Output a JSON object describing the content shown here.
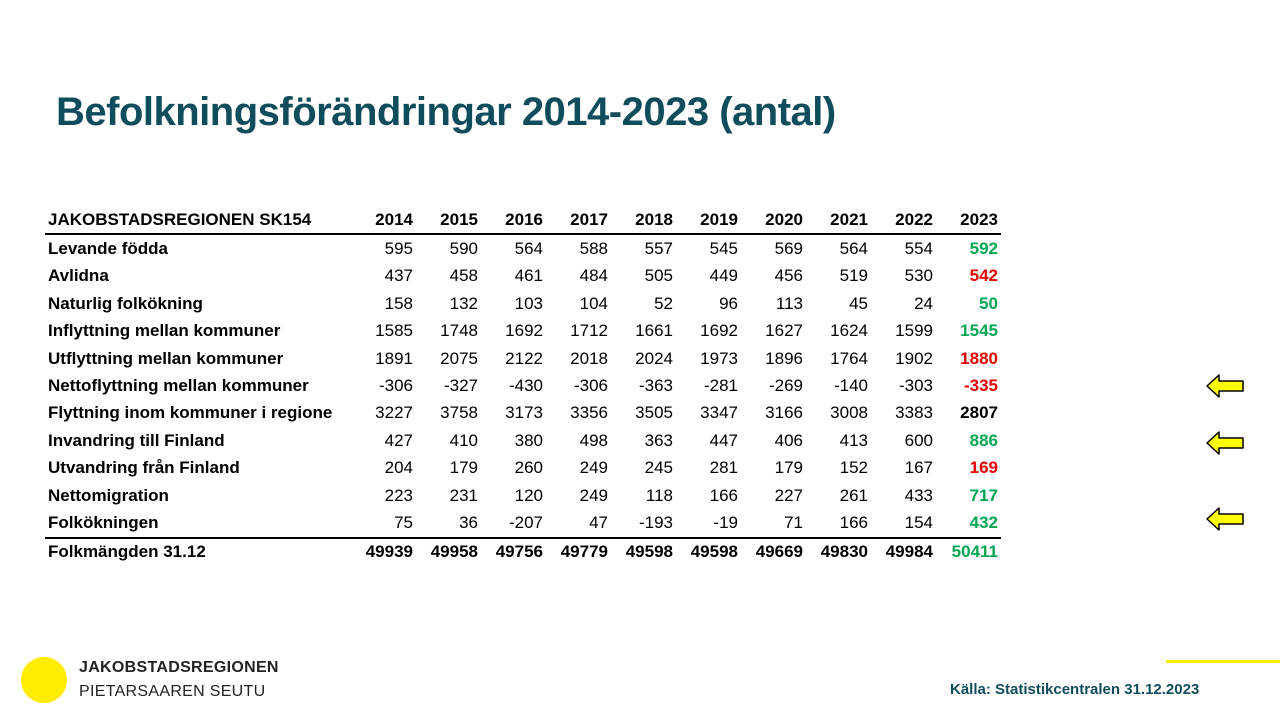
{
  "title": "Befolkningsförändringar 2014-2023 (antal)",
  "table": {
    "header": "JAKOBSTADSREGIONEN SK154",
    "years": [
      "2014",
      "2015",
      "2016",
      "2017",
      "2018",
      "2019",
      "2020",
      "2021",
      "2022",
      "2023"
    ],
    "rows": [
      {
        "label": "Levande födda",
        "values": [
          "595",
          "590",
          "564",
          "588",
          "557",
          "545",
          "569",
          "564",
          "554",
          "592"
        ],
        "last_color": "#00a651"
      },
      {
        "label": "Avlidna",
        "values": [
          "437",
          "458",
          "461",
          "484",
          "505",
          "449",
          "456",
          "519",
          "530",
          "542"
        ],
        "last_color": "#e60000"
      },
      {
        "label": "Naturlig folkökning",
        "values": [
          "158",
          "132",
          "103",
          "104",
          "52",
          "96",
          "113",
          "45",
          "24",
          "50"
        ],
        "last_color": "#00a651"
      },
      {
        "label": "Inflyttning mellan kommuner",
        "values": [
          "1585",
          "1748",
          "1692",
          "1712",
          "1661",
          "1692",
          "1627",
          "1624",
          "1599",
          "1545"
        ],
        "last_color": "#00a651"
      },
      {
        "label": "Utflyttning mellan kommuner",
        "values": [
          "1891",
          "2075",
          "2122",
          "2018",
          "2024",
          "1973",
          "1896",
          "1764",
          "1902",
          "1880"
        ],
        "last_color": "#e60000"
      },
      {
        "label": "Nettoflyttning mellan kommuner",
        "values": [
          "-306",
          "-327",
          "-430",
          "-306",
          "-363",
          "-281",
          "-269",
          "-140",
          "-303",
          "-335"
        ],
        "last_color": "#e60000"
      },
      {
        "label": "Flyttning inom kommuner i regione",
        "values": [
          "3227",
          "3758",
          "3173",
          "3356",
          "3505",
          "3347",
          "3166",
          "3008",
          "3383",
          "2807"
        ],
        "last_color": "#000000"
      },
      {
        "label": "Invandring till Finland",
        "values": [
          "427",
          "410",
          "380",
          "498",
          "363",
          "447",
          "406",
          "413",
          "600",
          "886"
        ],
        "last_color": "#00a651"
      },
      {
        "label": "Utvandring från Finland",
        "values": [
          "204",
          "179",
          "260",
          "249",
          "245",
          "281",
          "179",
          "152",
          "167",
          "169"
        ],
        "last_color": "#e60000"
      },
      {
        "label": "Nettomigration",
        "values": [
          "223",
          "231",
          "120",
          "249",
          "118",
          "166",
          "227",
          "261",
          "433",
          "717"
        ],
        "last_color": "#00a651"
      },
      {
        "label": "Folkökningen",
        "values": [
          "75",
          "36",
          "-207",
          "47",
          "-193",
          "-19",
          "71",
          "166",
          "154",
          "432"
        ],
        "last_color": "#00a651"
      },
      {
        "label": "Folkmängden 31.12",
        "values": [
          "49939",
          "49958",
          "49756",
          "49779",
          "49598",
          "49598",
          "49669",
          "49830",
          "49984",
          "50411"
        ],
        "last_color": "#00a651"
      }
    ]
  },
  "arrows": {
    "icon": "yellow-left-arrow",
    "color": "#ffff00",
    "rows": [
      "Nettoflyttning mellan kommuner",
      "Invandring till Finland",
      "Folkökningen"
    ]
  },
  "logo": {
    "line1": "JAKOBSTADSREGIONEN",
    "line2": "PIETARSAAREN SEUTU",
    "dot_color": "#ffed00"
  },
  "source": "Källa: Statistikcentralen 31.12.2023",
  "colors": {
    "title": "#0f4c5c",
    "positive": "#00a651",
    "negative": "#e60000",
    "accent": "#ffed00"
  }
}
